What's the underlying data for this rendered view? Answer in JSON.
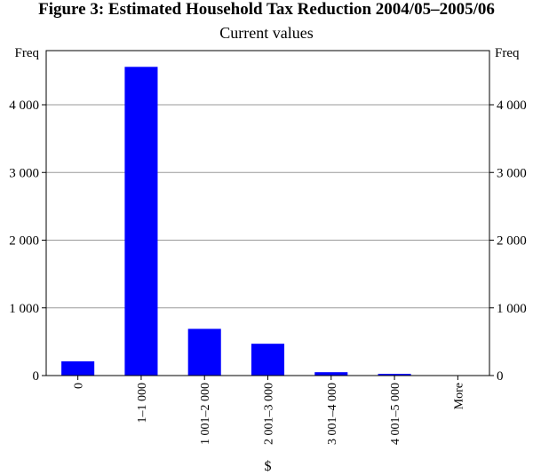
{
  "chart_data": {
    "type": "bar",
    "title": "Figure 3: Estimated Household Tax Reduction 2004/05–2005/06",
    "subtitle": "Current values",
    "xlabel": "$",
    "ylabel_left": "Freq",
    "ylabel_right": "Freq",
    "categories": [
      "0",
      "1–1 000",
      "1 001–2 000",
      "2 001–3 000",
      "3 001–4 000",
      "4 001–5 000",
      "More"
    ],
    "values": [
      210,
      4560,
      690,
      470,
      50,
      25,
      0
    ],
    "ylim": [
      0,
      4800
    ],
    "yticks": [
      0,
      1000,
      2000,
      3000,
      4000
    ],
    "ytick_labels": [
      "0",
      "1 000",
      "2 000",
      "3 000",
      "4 000"
    ],
    "grid": true,
    "bar_color": "#0000ff"
  }
}
